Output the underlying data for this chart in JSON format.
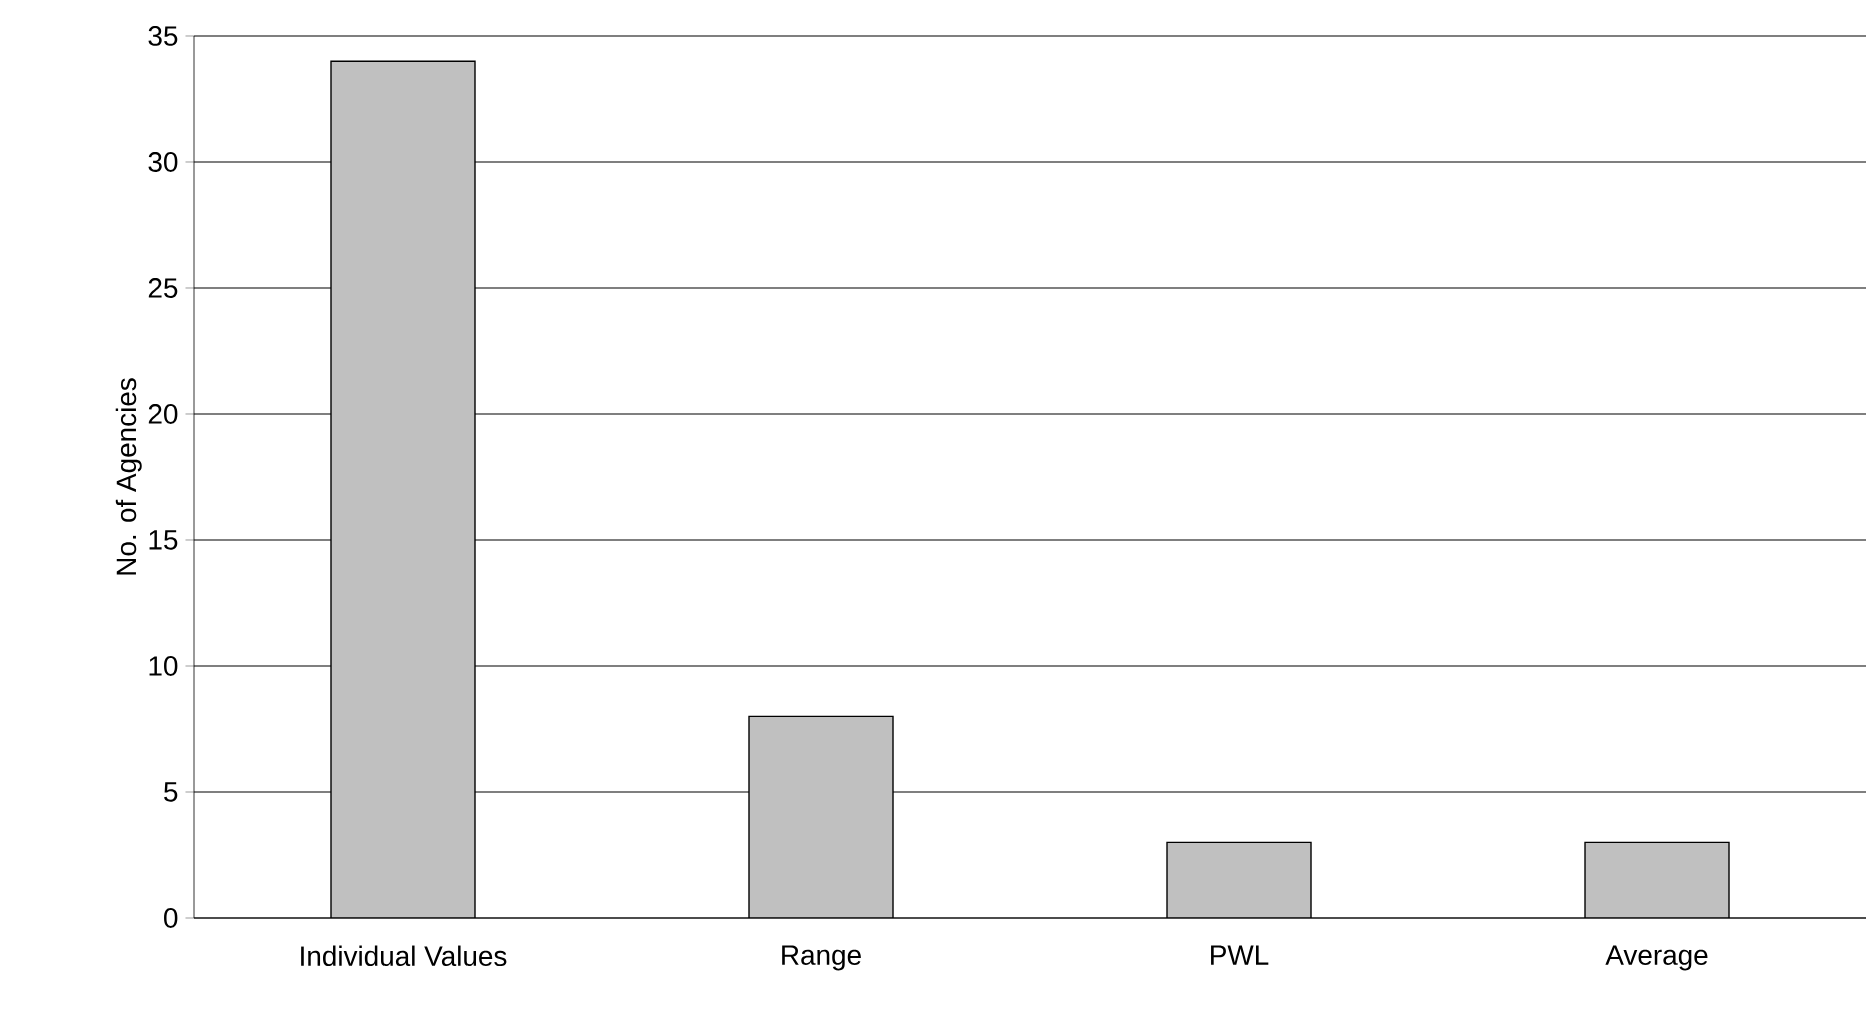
{
  "chart_data": {
    "type": "bar",
    "ylabel": "No. of Agencies",
    "categories": [
      "Individual Values",
      "Range",
      "PWL",
      "Average"
    ],
    "values": [
      34,
      8,
      3,
      3
    ],
    "color": "#c0c0c0",
    "ylim": [
      0,
      35
    ],
    "yticks": [
      0,
      5,
      10,
      15,
      20,
      25,
      30,
      35
    ],
    "grid": "y"
  }
}
